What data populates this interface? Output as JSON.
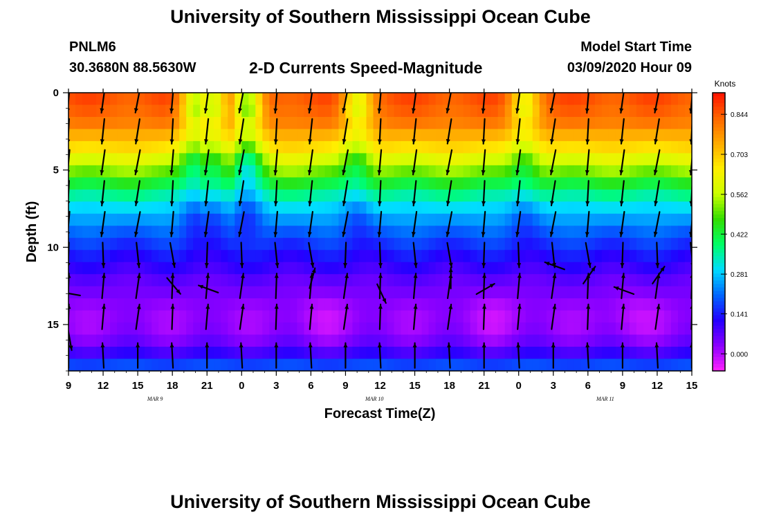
{
  "header": {
    "title": "University of Southern Mississippi Ocean Cube",
    "station_id": "PNLM6",
    "coordinates": "30.3680N 88.5630W",
    "subtitle": "2-D Currents Speed-Magnitude",
    "model_start_label": "Model Start Time",
    "model_start_value": "03/09/2020 Hour 09"
  },
  "footer": {
    "title": "University of Southern Mississippi Ocean Cube"
  },
  "colors": {
    "ramp": [
      "#ff22ff",
      "#8a00ff",
      "#2200ff",
      "#0066ff",
      "#00ddff",
      "#00ff66",
      "#33dd00",
      "#ccff00",
      "#ffee00",
      "#ffaa00",
      "#ff6600",
      "#ff1100"
    ],
    "arrow": "#000000",
    "frame": "#000000"
  },
  "chart_data": {
    "type": "heatmap",
    "title": "2-D Currents Speed-Magnitude",
    "xlabel": "Forecast Time(Z)",
    "ylabel": "Depth (ft)",
    "x_range_hours": [
      0,
      54
    ],
    "xlim_hours_from_start": [
      0,
      54
    ],
    "ylim": [
      18,
      0
    ],
    "x_tick_labels": [
      "9",
      "12",
      "15",
      "18",
      "21",
      "0",
      "3",
      "6",
      "9",
      "12",
      "15",
      "18",
      "21",
      "0",
      "3",
      "6",
      "9",
      "12",
      "15"
    ],
    "x_tick_hours": [
      0,
      3,
      6,
      9,
      12,
      15,
      18,
      21,
      24,
      27,
      30,
      33,
      36,
      39,
      42,
      45,
      48,
      51,
      54
    ],
    "y_ticks": [
      0,
      5,
      10,
      15
    ],
    "y_tick_labels": [
      "0",
      "5",
      "10",
      "15"
    ],
    "date_labels": [
      {
        "text": "MAR 9",
        "hour": 7.5
      },
      {
        "text": "MAR 10",
        "hour": 26.5
      },
      {
        "text": "MAR 11",
        "hour": 46.5
      }
    ],
    "colorbar": {
      "unit_label": "Knots",
      "vmin": -0.06,
      "vmax": 0.92,
      "tick_values": [
        0.0,
        0.141,
        0.281,
        0.422,
        0.562,
        0.703,
        0.844
      ],
      "tick_labels": [
        "0.000",
        "0.141",
        "0.281",
        "0.422",
        "0.562",
        "0.703",
        "0.844"
      ]
    },
    "depth_levels_ft": [
      0.4,
      1.2,
      2.0,
      2.7,
      3.5,
      4.3,
      5.1,
      5.8,
      6.6,
      7.4,
      8.2,
      8.9,
      9.7,
      10.5,
      11.3,
      12.0,
      12.8,
      13.6,
      14.4,
      15.1,
      15.9,
      16.7,
      17.5
    ],
    "surface_profile_knots": [
      0.85,
      0.83,
      0.8,
      0.74,
      0.68,
      0.6,
      0.52,
      0.44,
      0.36,
      0.3,
      0.25,
      0.21,
      0.17,
      0.13,
      0.1,
      0.07,
      0.05,
      0.03,
      0.02,
      0.02,
      0.04,
      0.08,
      0.18
    ],
    "weak_periods_hours": [
      {
        "hour": 11,
        "strength": 0.25
      },
      {
        "hour": 12.5,
        "strength": 0.22
      },
      {
        "hour": 15.5,
        "strength": 0.3
      },
      {
        "hour": 25,
        "strength": 0.2
      },
      {
        "hour": 39.5,
        "strength": 0.18
      }
    ],
    "deep_minimum_hours": [
      {
        "hour": 11,
        "strength": 0.08
      },
      {
        "hour": 22,
        "strength": 0.05
      },
      {
        "hour": 37,
        "strength": 0.05
      },
      {
        "hour": 49,
        "strength": 0.05
      }
    ],
    "arrow_columns_hours": [
      0,
      3,
      6,
      9,
      12,
      15,
      18,
      21,
      24,
      27,
      30,
      33,
      36,
      39,
      42,
      45,
      48,
      51,
      54
    ],
    "arrow_rows_ft": [
      0.5,
      2.5,
      4.5,
      6.5,
      8.5,
      10.5,
      12.5,
      14.5,
      17.0
    ],
    "arrow_direction_rule": "southward (down) in upper layer; northward (up) below ~12 ft; mixed transition near 10-13 ft",
    "transition_arrows": [
      {
        "hour": 0,
        "depth_ft": 13.0,
        "angle_deg": 170
      },
      {
        "hour": 0,
        "depth_ft": 16.0,
        "angle_deg": 280
      },
      {
        "hour": 9,
        "depth_ft": 12.5,
        "angle_deg": 310
      },
      {
        "hour": 12,
        "depth_ft": 12.7,
        "angle_deg": 160
      },
      {
        "hour": 21,
        "depth_ft": 12.0,
        "angle_deg": 75
      },
      {
        "hour": 27,
        "depth_ft": 13.0,
        "angle_deg": 295
      },
      {
        "hour": 33,
        "depth_ft": 12.0,
        "angle_deg": 90
      },
      {
        "hour": 36,
        "depth_ft": 12.7,
        "angle_deg": 30
      },
      {
        "hour": 42,
        "depth_ft": 11.2,
        "angle_deg": 160
      },
      {
        "hour": 45,
        "depth_ft": 11.8,
        "angle_deg": 55
      },
      {
        "hour": 48,
        "depth_ft": 12.8,
        "angle_deg": 160
      },
      {
        "hour": 51,
        "depth_ft": 11.8,
        "angle_deg": 55
      }
    ]
  }
}
